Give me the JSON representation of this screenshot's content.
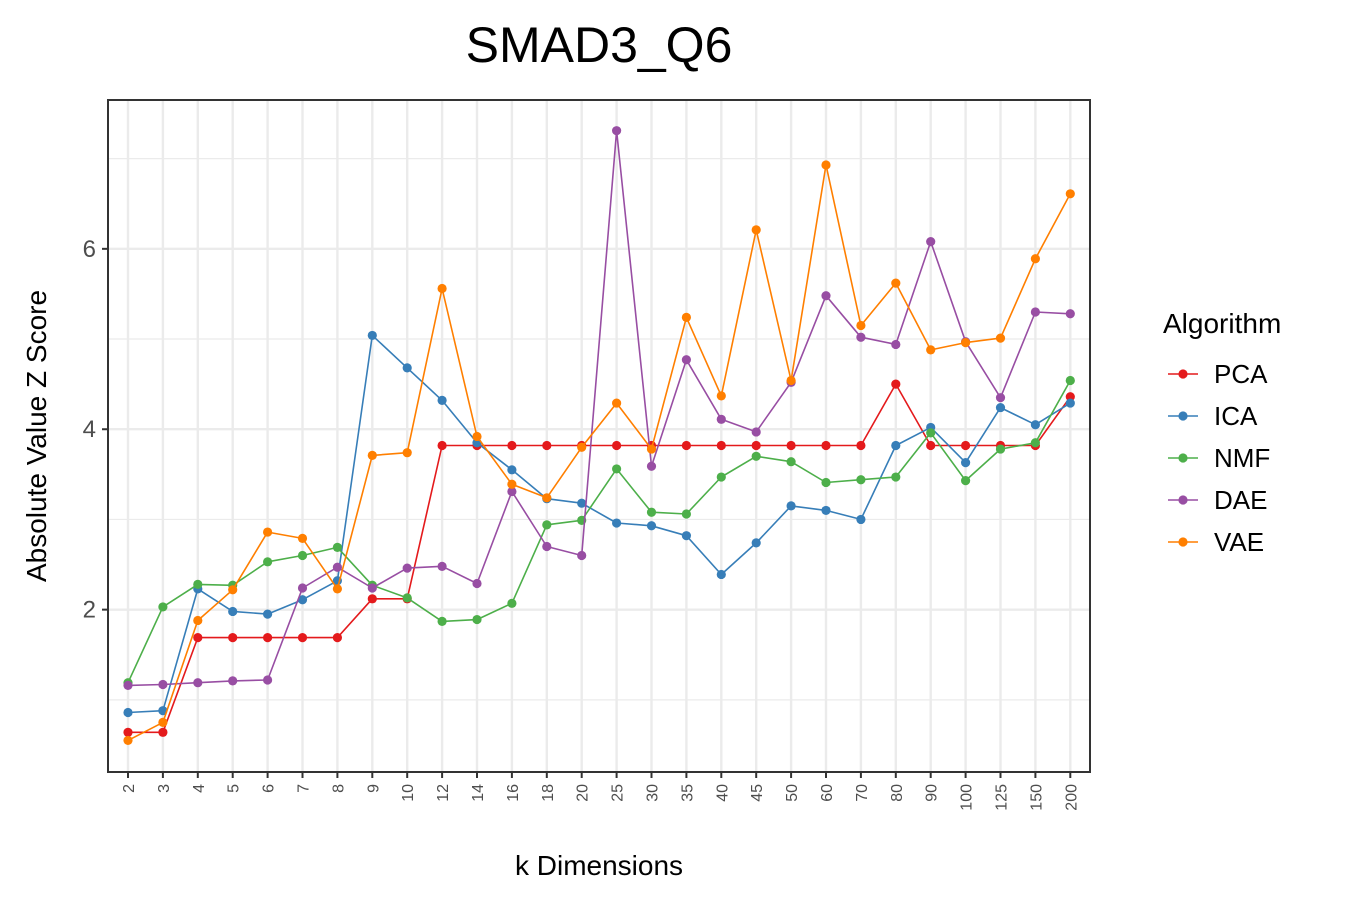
{
  "chart_data": {
    "type": "line",
    "title": "SMAD3_Q6",
    "xlabel": "k Dimensions",
    "ylabel": "Absolute Value Z Score",
    "categories": [
      "2",
      "3",
      "4",
      "5",
      "6",
      "7",
      "8",
      "9",
      "10",
      "12",
      "14",
      "16",
      "18",
      "20",
      "25",
      "30",
      "35",
      "40",
      "45",
      "50",
      "60",
      "70",
      "80",
      "90",
      "100",
      "125",
      "150",
      "200"
    ],
    "yticks": [
      2,
      4,
      6
    ],
    "ylim": [
      0.2,
      7.65
    ],
    "grid": true,
    "legend": {
      "title": "Algorithm",
      "position": "right"
    },
    "series": [
      {
        "name": "PCA",
        "color": "#e41a1c",
        "values": [
          0.64,
          0.64,
          1.69,
          1.69,
          1.69,
          1.69,
          1.69,
          2.12,
          2.12,
          3.82,
          3.82,
          3.82,
          3.82,
          3.82,
          3.82,
          3.82,
          3.82,
          3.82,
          3.82,
          3.82,
          3.82,
          3.82,
          4.5,
          3.82,
          3.82,
          3.82,
          3.82,
          4.36
        ]
      },
      {
        "name": "ICA",
        "color": "#377eb8",
        "values": [
          0.86,
          0.88,
          2.23,
          1.98,
          1.95,
          2.11,
          2.32,
          5.04,
          4.68,
          4.32,
          3.85,
          3.55,
          3.23,
          3.18,
          2.96,
          2.93,
          2.82,
          2.39,
          2.74,
          3.15,
          3.1,
          3.0,
          3.82,
          4.02,
          3.63,
          4.24,
          4.05,
          4.29
        ]
      },
      {
        "name": "NMF",
        "color": "#4daf4a",
        "values": [
          1.19,
          2.03,
          2.28,
          2.27,
          2.53,
          2.6,
          2.69,
          2.27,
          2.13,
          1.87,
          1.89,
          2.07,
          2.94,
          2.99,
          3.56,
          3.08,
          3.06,
          3.47,
          3.7,
          3.64,
          3.41,
          3.44,
          3.47,
          3.96,
          3.43,
          3.78,
          3.85,
          4.54
        ]
      },
      {
        "name": "DAE",
        "color": "#984ea3",
        "values": [
          1.16,
          1.17,
          1.19,
          1.21,
          1.22,
          2.24,
          2.47,
          2.24,
          2.46,
          2.48,
          2.29,
          3.31,
          2.7,
          2.6,
          7.31,
          3.59,
          4.77,
          4.11,
          3.97,
          4.52,
          5.48,
          5.02,
          4.94,
          6.08,
          4.97,
          4.35,
          5.3,
          5.28
        ]
      },
      {
        "name": "VAE",
        "color": "#ff7f00",
        "values": [
          0.55,
          0.75,
          1.88,
          2.22,
          2.86,
          2.79,
          2.23,
          3.71,
          3.74,
          5.56,
          3.92,
          3.39,
          3.24,
          3.8,
          4.29,
          3.78,
          5.24,
          4.37,
          6.21,
          4.54,
          6.93,
          5.15,
          5.62,
          4.88,
          4.96,
          5.01,
          5.89,
          6.61
        ]
      }
    ]
  }
}
